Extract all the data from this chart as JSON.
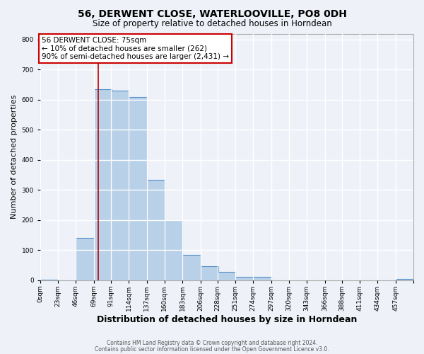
{
  "title": "56, DERWENT CLOSE, WATERLOOVILLE, PO8 0DH",
  "subtitle": "Size of property relative to detached houses in Horndean",
  "xlabel": "Distribution of detached houses by size in Horndean",
  "ylabel": "Number of detached properties",
  "bar_color": "#b8d0e8",
  "bar_edge_color": "#5590c8",
  "background_color": "#eef2f8",
  "grid_color": "#ffffff",
  "bin_labels": [
    "0sqm",
    "23sqm",
    "46sqm",
    "69sqm",
    "91sqm",
    "114sqm",
    "137sqm",
    "160sqm",
    "183sqm",
    "206sqm",
    "228sqm",
    "251sqm",
    "274sqm",
    "297sqm",
    "320sqm",
    "343sqm",
    "366sqm",
    "388sqm",
    "411sqm",
    "434sqm",
    "457sqm"
  ],
  "bin_lefts": [
    0,
    23,
    46,
    69,
    91,
    114,
    137,
    160,
    183,
    206,
    228,
    251,
    274,
    297,
    320,
    343,
    366,
    388,
    411,
    434,
    457
  ],
  "bin_width": 23,
  "bar_heights": [
    2,
    0,
    140,
    635,
    630,
    610,
    333,
    200,
    83,
    47,
    27,
    12,
    12,
    0,
    0,
    0,
    0,
    0,
    0,
    0,
    3
  ],
  "red_line_x": 75,
  "annotation_title": "56 DERWENT CLOSE: 75sqm",
  "annotation_line1": "← 10% of detached houses are smaller (262)",
  "annotation_line2": "90% of semi-detached houses are larger (2,431) →",
  "annotation_box_facecolor": "#ffffff",
  "annotation_box_edgecolor": "#cc0000",
  "red_line_color": "#bb0000",
  "ylim": [
    0,
    820
  ],
  "yticks": [
    0,
    100,
    200,
    300,
    400,
    500,
    600,
    700,
    800
  ],
  "footer1": "Contains HM Land Registry data © Crown copyright and database right 2024.",
  "footer2": "Contains public sector information licensed under the Open Government Licence v3.0."
}
